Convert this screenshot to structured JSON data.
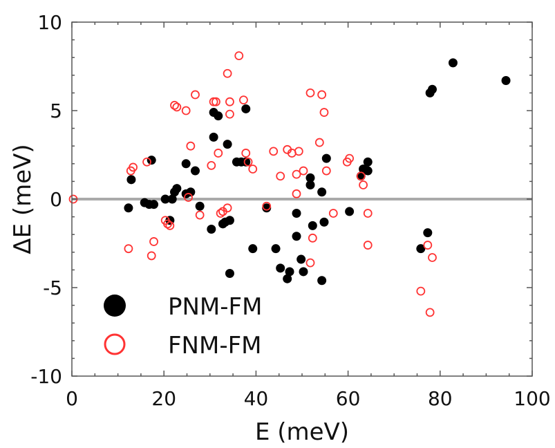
{
  "chart_data": {
    "type": "scatter",
    "title": "",
    "xlabel": "E (meV)",
    "ylabel": "ΔE (meV)",
    "xlim": [
      0,
      100
    ],
    "ylim": [
      -10,
      10
    ],
    "xticks": [
      0,
      20,
      40,
      60,
      80,
      100
    ],
    "yticks": [
      10,
      5,
      0,
      -5,
      -10
    ],
    "xtick_labels": [
      "0",
      "20",
      "40",
      "60",
      "80",
      "100"
    ],
    "ytick_labels": [
      "10",
      "5",
      "0",
      "-5",
      "-10"
    ],
    "zero_line": true,
    "grid": false,
    "legend_position": "bottom-left",
    "series": [
      {
        "name": "PNM-FM",
        "marker": "filled-circle",
        "color": "#000000",
        "points": [
          [
            12.3,
            -0.5
          ],
          [
            12.9,
            1.1
          ],
          [
            15.8,
            -0.2
          ],
          [
            16.8,
            -0.3
          ],
          [
            17.3,
            2.2
          ],
          [
            17.8,
            -0.3
          ],
          [
            20.3,
            0.0
          ],
          [
            21.3,
            -1.2
          ],
          [
            21.8,
            0.0
          ],
          [
            22.3,
            0.4
          ],
          [
            22.8,
            0.6
          ],
          [
            24.8,
            0.3
          ],
          [
            24.8,
            2.0
          ],
          [
            25.8,
            0.4
          ],
          [
            26.8,
            1.6
          ],
          [
            27.8,
            -0.4
          ],
          [
            30.3,
            -1.7
          ],
          [
            30.8,
            4.9
          ],
          [
            30.8,
            3.5
          ],
          [
            31.8,
            4.7
          ],
          [
            32.8,
            -1.4
          ],
          [
            33.3,
            -1.3
          ],
          [
            34.3,
            -1.2
          ],
          [
            33.8,
            3.1
          ],
          [
            34.3,
            -4.2
          ],
          [
            35.8,
            2.1
          ],
          [
            36.8,
            2.1
          ],
          [
            37.8,
            2.1
          ],
          [
            37.8,
            5.1
          ],
          [
            39.3,
            -2.8
          ],
          [
            42.3,
            -0.5
          ],
          [
            44.3,
            -2.8
          ],
          [
            45.3,
            -3.9
          ],
          [
            46.8,
            -4.5
          ],
          [
            47.3,
            -4.1
          ],
          [
            48.8,
            -0.8
          ],
          [
            48.8,
            -2.1
          ],
          [
            49.8,
            -3.4
          ],
          [
            50.3,
            -4.1
          ],
          [
            51.8,
            0.8
          ],
          [
            51.8,
            1.2
          ],
          [
            52.3,
            -1.5
          ],
          [
            54.3,
            0.4
          ],
          [
            54.3,
            -4.6
          ],
          [
            54.8,
            -1.3
          ],
          [
            55.3,
            2.3
          ],
          [
            60.3,
            -0.7
          ],
          [
            62.8,
            1.3
          ],
          [
            63.3,
            1.7
          ],
          [
            64.3,
            2.1
          ],
          [
            64.3,
            1.6
          ],
          [
            75.8,
            -2.8
          ],
          [
            77.3,
            -1.9
          ],
          [
            77.8,
            6.0
          ],
          [
            78.3,
            6.2
          ],
          [
            82.8,
            7.7
          ],
          [
            94.3,
            6.7
          ]
        ]
      },
      {
        "name": "FNM-FM",
        "marker": "open-circle",
        "color": "#ff3333",
        "points": [
          [
            0.3,
            0.0
          ],
          [
            12.3,
            -2.8
          ],
          [
            12.8,
            1.6
          ],
          [
            13.3,
            1.8
          ],
          [
            16.3,
            2.1
          ],
          [
            17.3,
            -3.2
          ],
          [
            17.8,
            -2.4
          ],
          [
            20.3,
            -1.2
          ],
          [
            20.8,
            -1.4
          ],
          [
            21.3,
            -1.5
          ],
          [
            22.3,
            5.3
          ],
          [
            22.8,
            5.2
          ],
          [
            24.8,
            5.0
          ],
          [
            25.3,
            0.1
          ],
          [
            25.8,
            3.0
          ],
          [
            26.8,
            5.9
          ],
          [
            27.8,
            -0.9
          ],
          [
            30.3,
            1.9
          ],
          [
            30.8,
            5.5
          ],
          [
            31.3,
            5.5
          ],
          [
            31.8,
            2.6
          ],
          [
            32.3,
            -0.8
          ],
          [
            32.8,
            -0.7
          ],
          [
            33.8,
            -0.5
          ],
          [
            33.8,
            7.1
          ],
          [
            34.3,
            5.5
          ],
          [
            34.3,
            4.8
          ],
          [
            36.3,
            8.1
          ],
          [
            37.3,
            5.6
          ],
          [
            37.8,
            2.6
          ],
          [
            38.3,
            2.1
          ],
          [
            39.3,
            1.7
          ],
          [
            42.3,
            -0.4
          ],
          [
            43.8,
            2.7
          ],
          [
            45.3,
            1.3
          ],
          [
            46.8,
            2.8
          ],
          [
            47.8,
            2.6
          ],
          [
            48.8,
            1.4
          ],
          [
            48.8,
            0.3
          ],
          [
            49.3,
            2.7
          ],
          [
            50.3,
            1.6
          ],
          [
            51.8,
            -3.6
          ],
          [
            51.8,
            6.0
          ],
          [
            52.3,
            -2.2
          ],
          [
            53.8,
            3.2
          ],
          [
            54.3,
            5.9
          ],
          [
            54.8,
            4.9
          ],
          [
            55.3,
            1.6
          ],
          [
            56.8,
            -0.8
          ],
          [
            59.8,
            2.1
          ],
          [
            60.3,
            2.3
          ],
          [
            62.8,
            1.3
          ],
          [
            63.3,
            0.8
          ],
          [
            64.3,
            -0.8
          ],
          [
            64.3,
            -2.6
          ],
          [
            75.8,
            -5.2
          ],
          [
            77.3,
            -2.6
          ],
          [
            77.8,
            -6.4
          ],
          [
            78.3,
            -3.3
          ]
        ]
      }
    ]
  }
}
